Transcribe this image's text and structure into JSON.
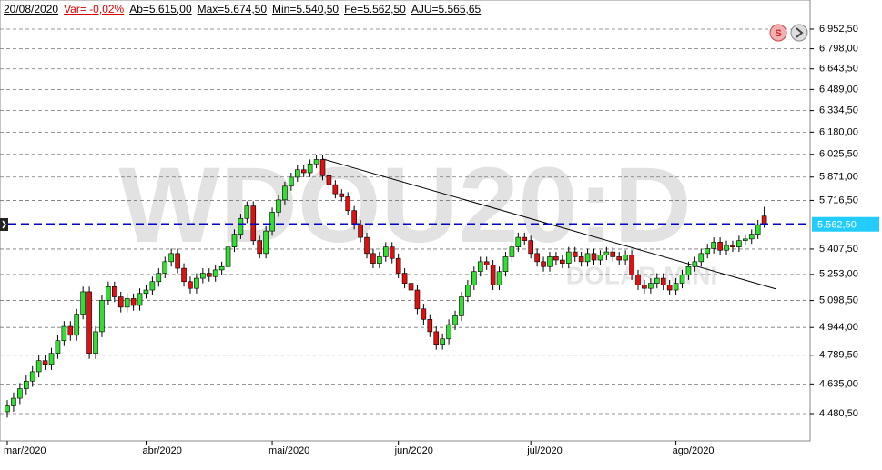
{
  "header": {
    "date": "20/08/2020",
    "var": "Var= -0,02%",
    "ab": "Ab=5.615,00",
    "max": "Max=5.674,50",
    "min": "Min=5.540,50",
    "fe": "Fe=5.562,50",
    "aju": "AJU=5.565,65"
  },
  "chart_data": {
    "type": "candlestick",
    "watermark": "WDOU20:D",
    "watermark_subtitle": "DOLAR MINI",
    "log_scale": true,
    "grid": true,
    "up_color": "#33dd33",
    "down_color": "#dd1111",
    "ylim": [
      4343,
      7150
    ],
    "yticks": [
      {
        "value": 4480.5,
        "label": "4.480,50"
      },
      {
        "value": 4635,
        "label": "4.635,00"
      },
      {
        "value": 4789.5,
        "label": "4.789,50"
      },
      {
        "value": 4944,
        "label": "4.944,00"
      },
      {
        "value": 5098.5,
        "label": "5.098,50"
      },
      {
        "value": 5253,
        "label": "5.253,00"
      },
      {
        "value": 5407.5,
        "label": "5.407,50"
      },
      {
        "value": 5716.5,
        "label": "5.716,50"
      },
      {
        "value": 5871,
        "label": "5.871,00"
      },
      {
        "value": 6025.5,
        "label": "6.025,50"
      },
      {
        "value": 6180,
        "label": "6.180,00"
      },
      {
        "value": 6334.5,
        "label": "6.334,50"
      },
      {
        "value": 6489,
        "label": "6.489,00"
      },
      {
        "value": 6643.5,
        "label": "6.643,50"
      },
      {
        "value": 6798,
        "label": "6.798,00"
      },
      {
        "value": 6952.5,
        "label": "6.952,50"
      }
    ],
    "last_price": {
      "value": 5562.5,
      "label": "5.562,50",
      "color": "#0000cc"
    },
    "categories": [
      "mar/2020",
      null,
      null,
      null,
      null,
      null,
      null,
      null,
      null,
      null,
      null,
      null,
      null,
      null,
      null,
      null,
      null,
      null,
      null,
      null,
      null,
      null,
      "abr/2020",
      null,
      null,
      null,
      null,
      null,
      null,
      null,
      null,
      null,
      null,
      null,
      null,
      null,
      null,
      null,
      null,
      null,
      null,
      null,
      "mai/2020",
      null,
      null,
      null,
      null,
      null,
      null,
      null,
      null,
      null,
      null,
      null,
      null,
      null,
      null,
      null,
      null,
      null,
      null,
      null,
      "jun/2020",
      null,
      null,
      null,
      null,
      null,
      null,
      null,
      null,
      null,
      null,
      null,
      null,
      null,
      null,
      null,
      null,
      null,
      null,
      null,
      null,
      "jul/2020",
      null,
      null,
      null,
      null,
      null,
      null,
      null,
      null,
      null,
      null,
      null,
      null,
      null,
      null,
      null,
      null,
      null,
      null,
      null,
      null,
      null,
      null,
      "ago/2020",
      null,
      null,
      null,
      null,
      null,
      null,
      null,
      null,
      null,
      null,
      null,
      null,
      null,
      null
    ],
    "open": [
      4490,
      4520,
      4560,
      4610,
      4650,
      4700,
      4760,
      4740,
      4800,
      4870,
      4950,
      4900,
      5020,
      5150,
      4800,
      4920,
      5100,
      5180,
      5120,
      5060,
      5110,
      5070,
      5140,
      5160,
      5210,
      5260,
      5330,
      5380,
      5290,
      5210,
      5170,
      5230,
      5260,
      5240,
      5280,
      5300,
      5420,
      5500,
      5600,
      5680,
      5460,
      5380,
      5520,
      5640,
      5720,
      5810,
      5870,
      5920,
      5900,
      5960,
      5990,
      5880,
      5820,
      5760,
      5740,
      5650,
      5560,
      5480,
      5380,
      5320,
      5360,
      5420,
      5350,
      5260,
      5200,
      5160,
      5050,
      4990,
      4920,
      4850,
      4880,
      4960,
      5010,
      5120,
      5190,
      5270,
      5330,
      5310,
      5190,
      5270,
      5360,
      5420,
      5480,
      5460,
      5380,
      5330,
      5300,
      5360,
      5340,
      5320,
      5390,
      5360,
      5330,
      5380,
      5340,
      5370,
      5390,
      5360,
      5340,
      5370,
      5250,
      5190,
      5170,
      5200,
      5230,
      5190,
      5160,
      5200,
      5250,
      5300,
      5330,
      5380,
      5410,
      5450,
      5400,
      5430,
      5420,
      5460,
      5470,
      5500,
      5615
    ],
    "high": [
      4550,
      4590,
      4640,
      4680,
      4730,
      4790,
      4790,
      4830,
      4900,
      4980,
      4980,
      5050,
      5180,
      5180,
      4950,
      5130,
      5210,
      5210,
      5150,
      5140,
      5140,
      5170,
      5190,
      5240,
      5290,
      5360,
      5410,
      5410,
      5320,
      5240,
      5260,
      5290,
      5290,
      5310,
      5330,
      5450,
      5530,
      5630,
      5710,
      5710,
      5490,
      5550,
      5670,
      5750,
      5840,
      5900,
      5950,
      5950,
      5990,
      6020,
      6020,
      5910,
      5850,
      5790,
      5770,
      5680,
      5590,
      5510,
      5410,
      5390,
      5450,
      5450,
      5380,
      5290,
      5230,
      5190,
      5080,
      5020,
      4950,
      4910,
      4990,
      5040,
      5150,
      5220,
      5300,
      5360,
      5360,
      5340,
      5300,
      5390,
      5450,
      5510,
      5510,
      5490,
      5410,
      5360,
      5390,
      5390,
      5370,
      5420,
      5420,
      5390,
      5410,
      5410,
      5400,
      5420,
      5420,
      5390,
      5400,
      5400,
      5280,
      5220,
      5230,
      5260,
      5260,
      5220,
      5230,
      5280,
      5330,
      5360,
      5410,
      5440,
      5480,
      5480,
      5460,
      5460,
      5490,
      5500,
      5530,
      5590,
      5674.5
    ],
    "low": [
      4460,
      4490,
      4530,
      4580,
      4620,
      4670,
      4710,
      4710,
      4770,
      4840,
      4870,
      4870,
      4990,
      4770,
      4770,
      4890,
      5070,
      5090,
      5030,
      5030,
      5040,
      5040,
      5110,
      5130,
      5180,
      5230,
      5300,
      5260,
      5180,
      5140,
      5140,
      5200,
      5210,
      5210,
      5250,
      5270,
      5390,
      5470,
      5570,
      5430,
      5350,
      5350,
      5490,
      5610,
      5690,
      5780,
      5840,
      5870,
      5870,
      5930,
      5850,
      5790,
      5730,
      5710,
      5620,
      5530,
      5450,
      5350,
      5290,
      5290,
      5330,
      5320,
      5230,
      5170,
      5130,
      5020,
      4960,
      4890,
      4820,
      4820,
      4850,
      4930,
      4980,
      5090,
      5160,
      5240,
      5280,
      5160,
      5160,
      5240,
      5330,
      5390,
      5430,
      5350,
      5300,
      5270,
      5270,
      5310,
      5290,
      5290,
      5330,
      5300,
      5300,
      5310,
      5310,
      5340,
      5330,
      5310,
      5310,
      5220,
      5160,
      5140,
      5140,
      5170,
      5160,
      5130,
      5130,
      5170,
      5220,
      5270,
      5300,
      5350,
      5380,
      5370,
      5370,
      5390,
      5390,
      5430,
      5440,
      5470,
      5540.5
    ],
    "close": [
      4520,
      4560,
      4610,
      4650,
      4700,
      4760,
      4740,
      4800,
      4870,
      4950,
      4900,
      5020,
      5150,
      4800,
      4920,
      5100,
      5180,
      5120,
      5060,
      5110,
      5070,
      5140,
      5160,
      5210,
      5260,
      5330,
      5380,
      5290,
      5210,
      5170,
      5230,
      5260,
      5240,
      5280,
      5300,
      5420,
      5500,
      5600,
      5680,
      5460,
      5380,
      5520,
      5640,
      5720,
      5810,
      5870,
      5920,
      5900,
      5960,
      5990,
      5880,
      5820,
      5760,
      5740,
      5650,
      5560,
      5480,
      5380,
      5320,
      5360,
      5420,
      5350,
      5260,
      5200,
      5160,
      5050,
      4990,
      4920,
      4850,
      4880,
      4960,
      5010,
      5120,
      5190,
      5270,
      5330,
      5310,
      5190,
      5270,
      5360,
      5420,
      5480,
      5460,
      5380,
      5330,
      5300,
      5360,
      5340,
      5320,
      5390,
      5360,
      5330,
      5380,
      5340,
      5370,
      5390,
      5360,
      5340,
      5370,
      5250,
      5190,
      5170,
      5200,
      5230,
      5190,
      5160,
      5200,
      5250,
      5300,
      5330,
      5380,
      5410,
      5450,
      5400,
      5430,
      5420,
      5460,
      5470,
      5500,
      5560,
      5562.5
    ]
  }
}
